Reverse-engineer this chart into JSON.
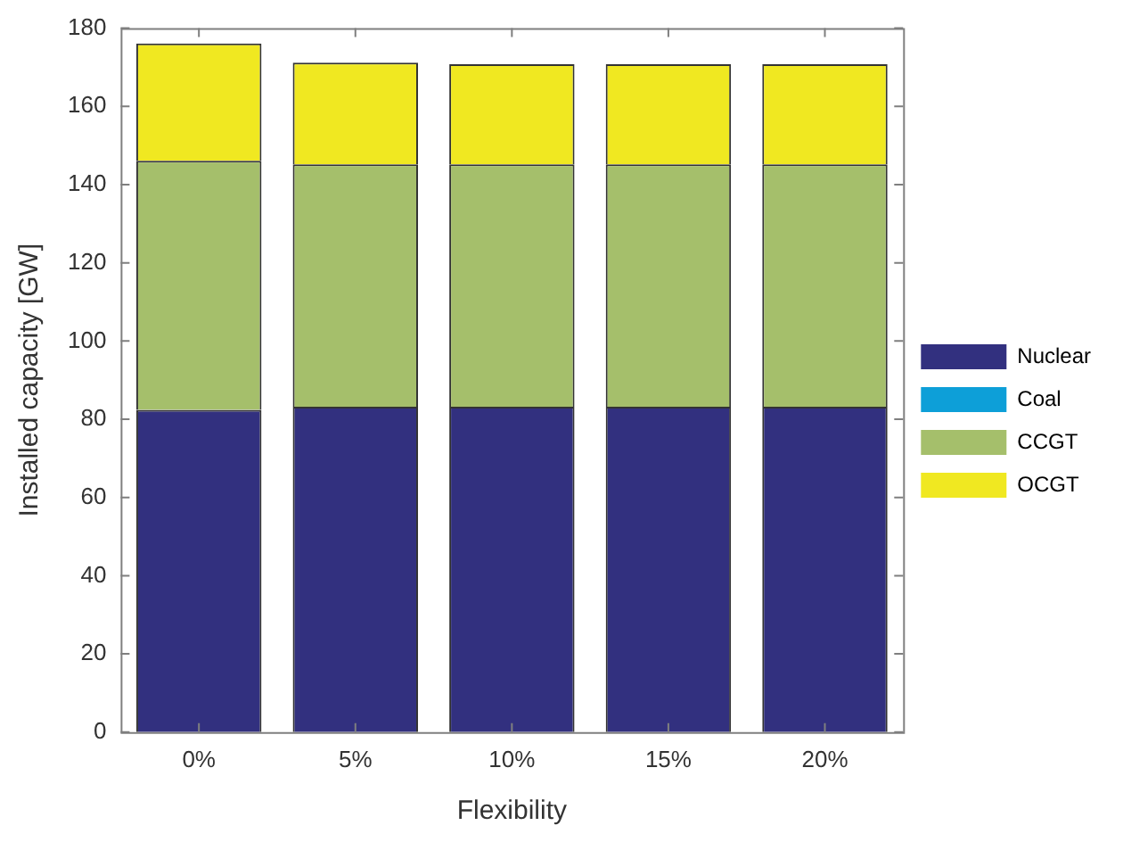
{
  "chart_data": {
    "type": "bar",
    "stacked": true,
    "xlabel": "Flexibility",
    "ylabel": "Installed capacity [GW]",
    "categories": [
      "0%",
      "5%",
      "10%",
      "15%",
      "20%"
    ],
    "series": [
      {
        "name": "Nuclear",
        "color": "#32307f",
        "values": [
          82.4,
          83.2,
          83.2,
          83.2,
          83.2
        ]
      },
      {
        "name": "Coal",
        "color": "#0d9fd8",
        "values": [
          0,
          0,
          0,
          0,
          0
        ]
      },
      {
        "name": "CCGT",
        "color": "#a5bf6b",
        "values": [
          63.7,
          62,
          62,
          62,
          62
        ]
      },
      {
        "name": "OCGT",
        "color": "#f0e821",
        "values": [
          30,
          26,
          25.6,
          25.6,
          25.6
        ]
      }
    ],
    "ylim": [
      0,
      180
    ],
    "yticks": [
      0,
      20,
      40,
      60,
      80,
      100,
      120,
      140,
      160,
      180
    ],
    "grid": false,
    "legend": "right"
  }
}
